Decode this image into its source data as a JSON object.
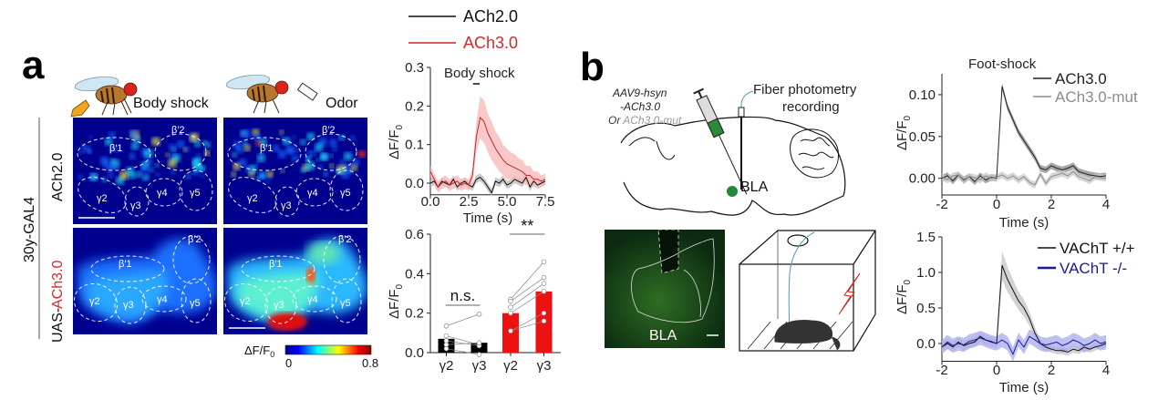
{
  "panel_labels": {
    "a": "a",
    "b": "b"
  },
  "panel_a": {
    "stimuli": [
      "Body shock",
      "Odor"
    ],
    "row_group_label": "30y-GAL4",
    "row_prefix": "UAS-",
    "rows": [
      {
        "label": "ACh2.0",
        "color": "#000000"
      },
      {
        "label": "ACh3.0",
        "color": "#d42a2a"
      }
    ],
    "regions": [
      "β′1",
      "β′2",
      "γ2",
      "γ3",
      "γ4",
      "γ5"
    ],
    "colorbar": {
      "label": "ΔF/F",
      "label_sub": "0",
      "min": "0",
      "max": "0.8"
    }
  },
  "panel_b": {
    "virus_line1": "AAV9-hsyn",
    "virus_line2": "-ACh3.0",
    "virus_or": "Or",
    "virus_mut": "ACh3.0-mut",
    "fiber_line1": "Fiber photometry",
    "fiber_line2": "recording",
    "target": "BLA",
    "histology_label": "BLA"
  },
  "chart_data": [
    {
      "type": "line",
      "annotation": "Body shock",
      "stimulus_window": [
        2.9,
        3.1
      ],
      "xlabel": "Time (s)",
      "ylabel": "ΔF/F",
      "ylabel_sub": "0",
      "xlim": [
        0,
        7.5
      ],
      "ylim": [
        -0.03,
        0.3
      ],
      "xticks": [
        "0.0",
        "2.5",
        "5.0",
        "7.5"
      ],
      "yticks": [
        "0.0",
        "0.1",
        "0.2",
        "0.3"
      ],
      "legend": "top",
      "x_start": 0,
      "x_step": 0.25,
      "series": [
        {
          "name": "ACh2.0",
          "color": "#111111",
          "band": "#b8b8b8",
          "y": [
            0,
            0.005,
            -0.01,
            0.005,
            0,
            -0.005,
            0.01,
            -0.01,
            0,
            0.005,
            -0.005,
            -0.01,
            0.01,
            0.015,
            0.005,
            -0.01,
            -0.025,
            0.005,
            0,
            0.01,
            -0.005,
            0.0,
            0.01,
            0.005,
            0.0,
            0.015,
            -0.01,
            0.005,
            -0.005,
            0.0,
            0.005
          ],
          "sem": 0.01
        },
        {
          "name": "ACh3.0",
          "color": "#c0282d",
          "band": "#f7b7b7",
          "y": [
            0.03,
            0.01,
            -0.01,
            0.0,
            0.005,
            -0.005,
            0.0,
            0.005,
            -0.005,
            0.0,
            -0.005,
            0.02,
            0.12,
            0.17,
            0.16,
            0.13,
            0.11,
            0.09,
            0.075,
            0.06,
            0.05,
            0.045,
            0.04,
            0.035,
            0.03,
            0.02,
            0.02,
            0.01,
            0.01,
            0.005,
            0.01
          ],
          "sem": [
            0.015,
            0.015,
            0.015,
            0.015,
            0.015,
            0.015,
            0.015,
            0.015,
            0.015,
            0.015,
            0.015,
            0.02,
            0.04,
            0.055,
            0.055,
            0.05,
            0.05,
            0.045,
            0.045,
            0.04,
            0.04,
            0.035,
            0.035,
            0.03,
            0.03,
            0.025,
            0.025,
            0.02,
            0.02,
            0.015,
            0.015
          ]
        }
      ]
    },
    {
      "type": "bar",
      "ylabel": "ΔF/F",
      "ylabel_sub": "0",
      "ylim": [
        0,
        0.6
      ],
      "yticks": [
        "0.0",
        "0.2",
        "0.4",
        "0.6"
      ],
      "categories": [
        "γ2",
        "γ3",
        "γ2",
        "γ3"
      ],
      "groups": [
        "ACh2.0",
        "ACh2.0",
        "ACh3.0",
        "ACh3.0"
      ],
      "colors": [
        "#000000",
        "#000000",
        "#ee1111",
        "#ee1111"
      ],
      "label_colors": [
        "#111111",
        "#111111",
        "#d42a2a",
        "#d42a2a"
      ],
      "values": [
        0.07,
        0.05,
        0.2,
        0.31
      ],
      "paired_points": [
        {
          "bars": [
            0,
            1
          ],
          "pairs": [
            [
              0.135,
              0.195
            ],
            [
              0.085,
              0.04
            ],
            [
              0.06,
              0.035
            ],
            [
              0.04,
              0.05
            ],
            [
              0.02,
              -0.01
            ]
          ]
        },
        {
          "bars": [
            2,
            3
          ],
          "pairs": [
            [
              0.27,
              0.46
            ],
            [
              0.26,
              0.38
            ],
            [
              0.23,
              0.35
            ],
            [
              0.2,
              0.31
            ],
            [
              0.11,
              0.2
            ],
            [
              0.11,
              0.16
            ]
          ]
        }
      ],
      "significance": [
        {
          "label": "n.s.",
          "bars": [
            0,
            1
          ]
        },
        {
          "label": "**",
          "bars": [
            2,
            3
          ]
        }
      ]
    },
    {
      "type": "line",
      "title": "Foot-shock",
      "xlabel": "Time (s)",
      "ylabel": "ΔF/F",
      "ylabel_sub": "0",
      "xlim": [
        -2,
        4
      ],
      "ylim": [
        -0.02,
        0.125
      ],
      "xticks": [
        "-2",
        "0",
        "2",
        "4"
      ],
      "yticks": [
        "0.00",
        "0.05",
        "0.10"
      ],
      "legend": "top-right",
      "x_start": -2,
      "x_step": 0.2,
      "series": [
        {
          "name": "ACh3.0",
          "color": "#222222",
          "band": "#8a8a8a",
          "y": [
            0.0,
            0.003,
            -0.003,
            0.004,
            -0.002,
            0.002,
            -0.004,
            0.003,
            -0.002,
            0.001,
            0.0,
            0.11,
            0.085,
            0.07,
            0.055,
            0.045,
            0.035,
            0.025,
            0.012,
            0.01,
            0.015,
            0.012,
            0.01,
            0.012,
            0.015,
            0.008,
            0.006,
            0.004,
            0.003,
            0.002,
            0.003
          ],
          "sem": 0.004
        },
        {
          "name": "ACh3.0-mut",
          "color": "#8c8c8c",
          "band": "#c8c8c8",
          "y": [
            0.002,
            -0.002,
            0.003,
            0.004,
            -0.003,
            0.002,
            0.001,
            -0.002,
            0.003,
            0.0,
            0.001,
            0.004,
            0.0,
            0.003,
            -0.002,
            0.002,
            -0.005,
            -0.008,
            0.005,
            -0.006,
            0.002,
            0.004,
            0.006,
            0.003,
            0.008,
            0.002,
            0.0,
            -0.003,
            0.002,
            0.001,
            0.0
          ],
          "sem": 0.004
        }
      ]
    },
    {
      "type": "line",
      "xlabel": "Time (s)",
      "ylabel": "ΔF/F",
      "ylabel_sub": "0",
      "xlim": [
        -2,
        4
      ],
      "ylim": [
        -0.25,
        1.5
      ],
      "xticks": [
        "-2",
        "0",
        "2",
        "4"
      ],
      "yticks": [
        "0.0",
        "0.5",
        "1.0",
        "1.5"
      ],
      "legend": "top-right",
      "x_start": -2,
      "x_step": 0.2,
      "series": [
        {
          "name": "VAChT +/+",
          "color": "#111111",
          "band": "#c4c4c4",
          "y": [
            -0.05,
            0.0,
            -0.05,
            0.02,
            -0.03,
            0.0,
            0.02,
            0.1,
            0.05,
            0.03,
            0.0,
            1.1,
            0.9,
            0.75,
            0.6,
            0.5,
            0.35,
            0.15,
            0.0,
            -0.05,
            -0.08,
            -0.1,
            -0.1,
            -0.12,
            -0.08,
            -0.1,
            -0.05,
            -0.08,
            -0.05,
            -0.03,
            0.0
          ],
          "sem": [
            0.07,
            0.07,
            0.07,
            0.07,
            0.07,
            0.07,
            0.07,
            0.07,
            0.07,
            0.07,
            0.07,
            0.2,
            0.18,
            0.15,
            0.13,
            0.12,
            0.1,
            0.08,
            0.06,
            0.05,
            0.05,
            0.05,
            0.05,
            0.05,
            0.05,
            0.05,
            0.05,
            0.05,
            0.05,
            0.05,
            0.05
          ]
        },
        {
          "name": "VAChT -/-",
          "color": "#1a1a9a",
          "band": "#a9a9ee",
          "y": [
            -0.05,
            0.02,
            -0.03,
            0.0,
            -0.02,
            0.03,
            0.05,
            0.08,
            0.05,
            0.02,
            0.0,
            0.05,
            0.0,
            -0.15,
            0.05,
            -0.05,
            0.1,
            0.05,
            0.0,
            -0.02,
            0.0,
            0.02,
            -0.03,
            0.0,
            0.05,
            0.02,
            -0.03,
            0.0,
            0.05,
            0.0,
            0.02
          ],
          "sem": 0.1
        }
      ]
    }
  ]
}
